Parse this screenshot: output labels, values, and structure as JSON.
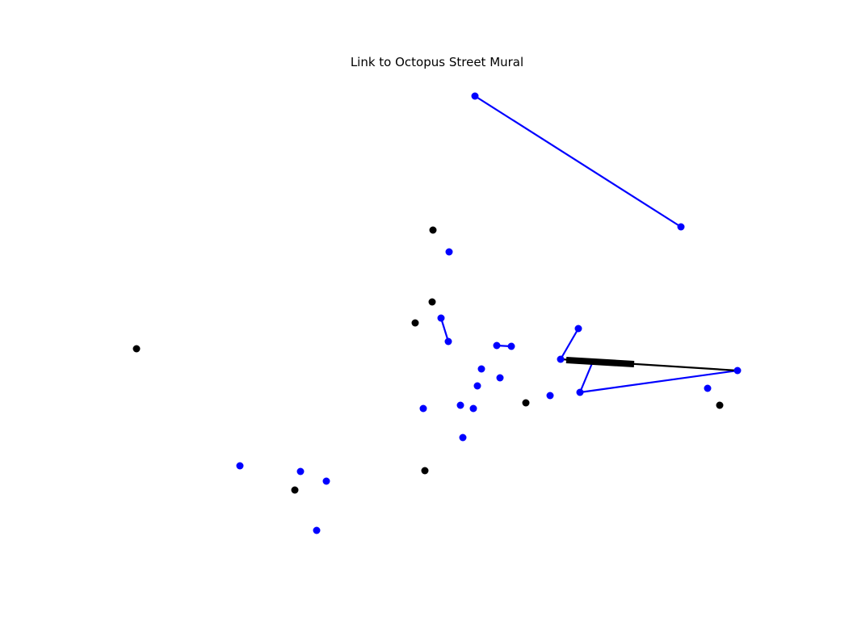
{
  "title": "Link to Octopus Street Mural",
  "colors": {
    "background": "#ffffff",
    "blue_node": "#0000ff",
    "black_node": "#000000",
    "blue_edge": "#0000ff",
    "black_edge": "#000000"
  }
}
